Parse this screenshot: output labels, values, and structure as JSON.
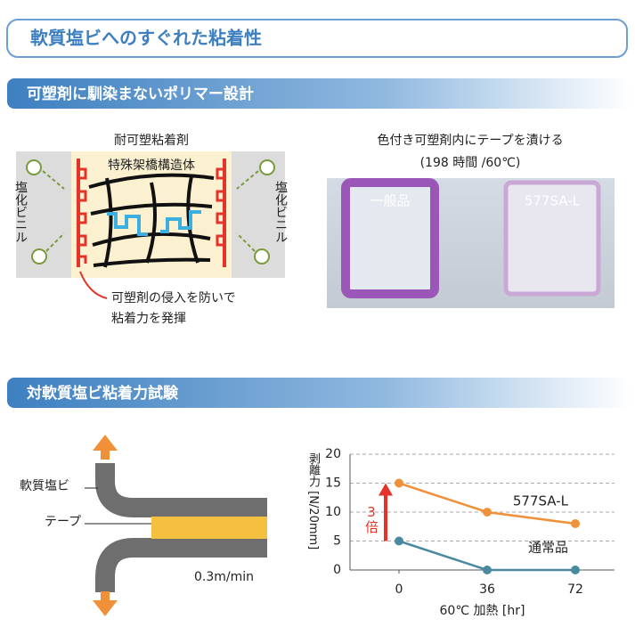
{
  "title": "軟質塩ビへのすぐれた粘着性",
  "section1": {
    "heading": "可塑剤に馴染まないポリマー設計",
    "diagram": {
      "title": "耐可塑粘着剤",
      "core": "特殊架橋構造体",
      "left_label": "塩化ビニル",
      "right_label": "塩化ビニル",
      "caption": [
        "可塑剤の侵入を防いで",
        "粘着力を発揮"
      ]
    },
    "photo": {
      "caption": [
        "色付き可塑剤内にテープを漬ける",
        "(198 時間 /60℃)"
      ],
      "labels": [
        "一般品",
        "577SA-L"
      ]
    }
  },
  "section2": {
    "heading": "対軟質塩ビ粘着力試験",
    "diagram": {
      "labels": [
        "軟質塩ビ",
        "テープ"
      ],
      "speed": "0.3m/min"
    }
  },
  "chart_data": {
    "type": "line",
    "x": [
      0,
      36,
      72
    ],
    "xlim": [
      -20,
      88
    ],
    "xticks": [
      0,
      36,
      72
    ],
    "ylim": [
      0,
      20
    ],
    "yticks": [
      0,
      5,
      10,
      15,
      20
    ],
    "xlabel": "60℃ 加熱 [hr]",
    "ylabel": "剥離力 [N/20mm]",
    "grid": true,
    "annotation": "3倍",
    "series": [
      {
        "name": "577SA-L",
        "color": "#f0913a",
        "values": [
          15,
          10,
          8
        ]
      },
      {
        "name": "通常品",
        "color": "#4a8aa0",
        "values": [
          5,
          0,
          0
        ]
      }
    ]
  }
}
